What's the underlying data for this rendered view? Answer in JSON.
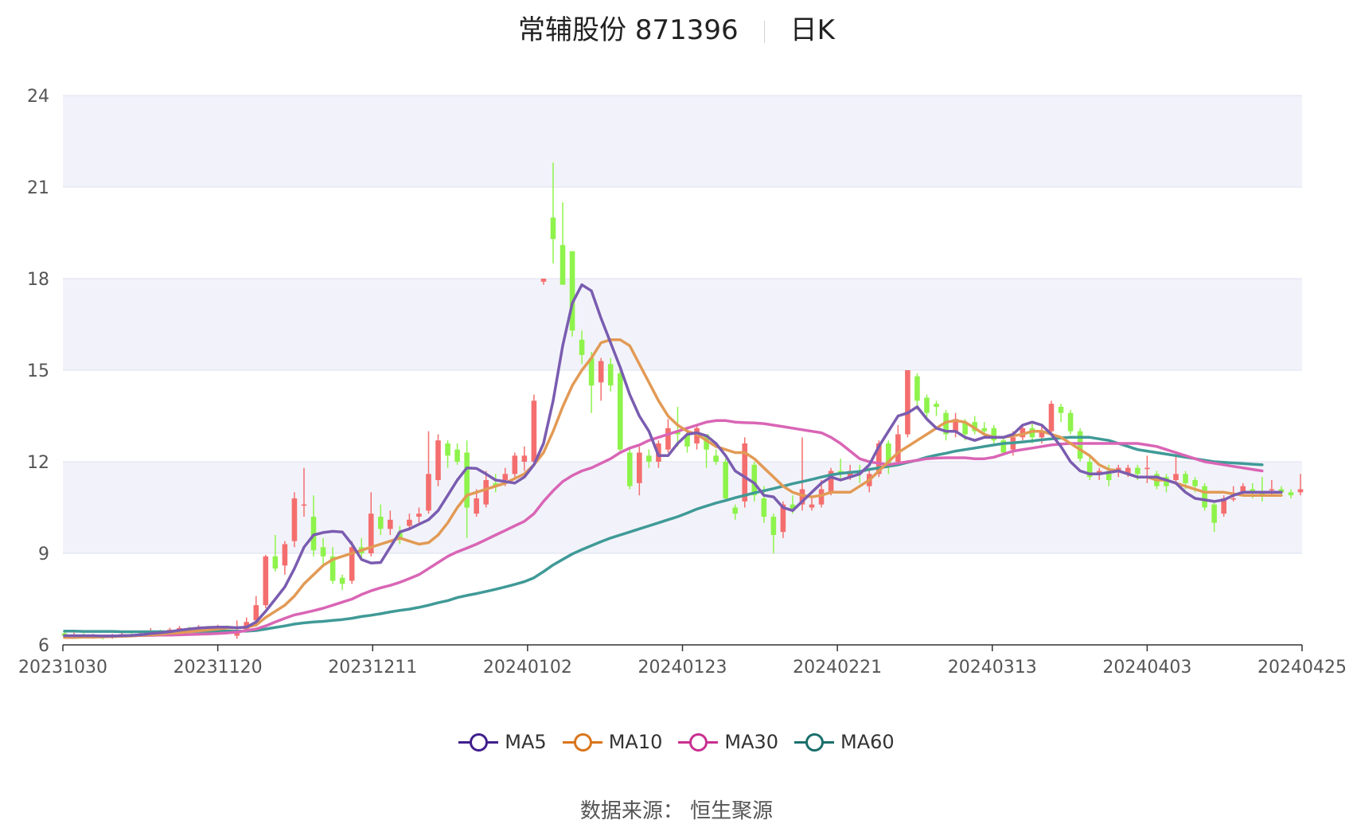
{
  "header": {
    "title": "常辅股份 871396",
    "period": "日K"
  },
  "legend": [
    {
      "label": "MA5",
      "color": "#3f1e8c"
    },
    {
      "label": "MA10",
      "color": "#d9761a"
    },
    {
      "label": "MA30",
      "color": "#c92f8f"
    },
    {
      "label": "MA60",
      "color": "#1a6f6b"
    }
  ],
  "source": "数据来源： 恒生聚源",
  "colors": {
    "up": "#f46e6e",
    "down": "#8ef34b",
    "grid": "#dcdff0",
    "band": "#f2f3fa",
    "ma5": "#7a5cb0",
    "ma10": "#e29a55",
    "ma30": "#d965b5",
    "ma60": "#3f9a97"
  },
  "chart_data": {
    "type": "candlestick",
    "ylim": [
      6,
      24
    ],
    "yticks": [
      6,
      9,
      12,
      15,
      18,
      21,
      24
    ],
    "xticks": [
      "20231030",
      "20231120",
      "20231211",
      "20240102",
      "20240123",
      "20240221",
      "20240313",
      "20240403",
      "20240425"
    ],
    "grid": true,
    "legend_position": "bottom",
    "candles": [
      [
        6.38,
        6.3,
        6.45,
        6.2
      ],
      [
        6.3,
        6.32,
        6.4,
        6.25
      ],
      [
        6.32,
        6.28,
        6.38,
        6.22
      ],
      [
        6.28,
        6.3,
        6.36,
        6.2
      ],
      [
        6.3,
        6.25,
        6.34,
        6.18
      ],
      [
        6.25,
        6.3,
        6.36,
        6.2
      ],
      [
        6.3,
        6.35,
        6.42,
        6.26
      ],
      [
        6.35,
        6.32,
        6.4,
        6.28
      ],
      [
        6.32,
        6.38,
        6.45,
        6.3
      ],
      [
        6.38,
        6.45,
        6.55,
        6.34
      ],
      [
        6.45,
        6.42,
        6.5,
        6.38
      ],
      [
        6.42,
        6.5,
        6.56,
        6.4
      ],
      [
        6.5,
        6.55,
        6.62,
        6.46
      ],
      [
        6.55,
        6.5,
        6.6,
        6.45
      ],
      [
        6.5,
        6.58,
        6.65,
        6.48
      ],
      [
        6.58,
        6.55,
        6.62,
        6.5
      ],
      [
        6.55,
        6.6,
        6.66,
        6.52
      ],
      [
        6.6,
        6.58,
        6.64,
        6.54
      ],
      [
        6.3,
        6.4,
        6.8,
        6.2
      ],
      [
        6.5,
        6.75,
        6.9,
        6.4
      ],
      [
        6.8,
        7.3,
        7.6,
        6.7
      ],
      [
        7.3,
        8.9,
        8.95,
        7.2
      ],
      [
        8.9,
        8.5,
        9.6,
        8.4
      ],
      [
        8.6,
        9.3,
        9.4,
        8.3
      ],
      [
        9.4,
        10.8,
        11.0,
        9.2
      ],
      [
        10.6,
        10.6,
        11.8,
        10.2
      ],
      [
        10.2,
        9.1,
        10.9,
        8.9
      ],
      [
        9.2,
        8.9,
        9.5,
        8.6
      ],
      [
        8.9,
        8.1,
        9.2,
        8.0
      ],
      [
        8.2,
        8.0,
        8.3,
        7.8
      ],
      [
        8.1,
        9.2,
        9.4,
        8.0
      ],
      [
        9.2,
        9.0,
        9.5,
        8.8
      ],
      [
        9.0,
        10.3,
        11.0,
        8.9
      ],
      [
        10.2,
        9.8,
        10.6,
        9.6
      ],
      [
        9.8,
        10.1,
        10.4,
        9.6
      ],
      [
        9.7,
        9.5,
        9.9,
        9.3
      ],
      [
        9.9,
        10.1,
        10.3,
        9.8
      ],
      [
        10.2,
        10.3,
        10.5,
        10.0
      ],
      [
        10.4,
        11.6,
        13.0,
        10.3
      ],
      [
        11.4,
        12.7,
        12.9,
        11.2
      ],
      [
        12.6,
        12.2,
        12.7,
        11.8
      ],
      [
        12.4,
        12.0,
        12.6,
        11.9
      ],
      [
        12.3,
        10.5,
        12.7,
        9.5
      ],
      [
        10.3,
        10.8,
        11.1,
        10.2
      ],
      [
        10.6,
        11.4,
        11.7,
        10.5
      ],
      [
        11.3,
        11.2,
        11.6,
        11.0
      ],
      [
        11.4,
        11.6,
        11.8,
        11.2
      ],
      [
        11.6,
        12.2,
        12.3,
        11.5
      ],
      [
        12.0,
        12.2,
        12.5,
        11.7
      ],
      [
        12.0,
        14.0,
        14.2,
        11.9
      ],
      [
        17.9,
        18.0,
        18.0,
        17.8
      ],
      [
        20.0,
        19.3,
        21.8,
        18.5
      ],
      [
        19.1,
        17.8,
        20.5,
        17.8
      ],
      [
        18.9,
        16.3,
        18.9,
        16.1
      ],
      [
        16.0,
        15.5,
        16.3,
        15.2
      ],
      [
        15.4,
        14.5,
        15.6,
        13.6
      ],
      [
        14.6,
        15.3,
        15.4,
        14.0
      ],
      [
        15.2,
        14.5,
        15.4,
        14.3
      ],
      [
        14.9,
        12.4,
        15.0,
        12.3
      ],
      [
        12.3,
        11.2,
        12.5,
        11.1
      ],
      [
        11.3,
        12.3,
        12.5,
        10.9
      ],
      [
        12.2,
        12.0,
        12.4,
        11.8
      ],
      [
        12.0,
        12.6,
        12.7,
        11.8
      ],
      [
        12.4,
        13.1,
        13.4,
        12.3
      ],
      [
        13.0,
        12.9,
        13.8,
        12.5
      ],
      [
        12.9,
        12.5,
        13.1,
        12.3
      ],
      [
        12.6,
        13.1,
        13.2,
        12.4
      ],
      [
        12.9,
        12.4,
        12.9,
        11.8
      ],
      [
        12.2,
        12.0,
        12.4,
        11.9
      ],
      [
        12.0,
        10.8,
        12.1,
        10.7
      ],
      [
        10.5,
        10.3,
        10.6,
        10.1
      ],
      [
        10.7,
        12.6,
        12.8,
        10.5
      ],
      [
        11.9,
        10.9,
        12.0,
        10.7
      ],
      [
        10.8,
        10.2,
        11.2,
        10.0
      ],
      [
        10.2,
        9.6,
        10.3,
        9.0
      ],
      [
        9.7,
        10.6,
        10.7,
        9.5
      ],
      [
        10.6,
        10.4,
        10.9,
        10.3
      ],
      [
        10.6,
        11.1,
        12.8,
        10.4
      ],
      [
        10.5,
        10.6,
        10.8,
        10.4
      ],
      [
        10.6,
        11.1,
        11.4,
        10.5
      ],
      [
        11.0,
        11.7,
        11.8,
        10.9
      ],
      [
        11.7,
        11.6,
        12.1,
        11.4
      ],
      [
        11.5,
        11.7,
        11.9,
        11.4
      ],
      [
        11.7,
        11.6,
        11.9,
        11.3
      ],
      [
        11.2,
        11.6,
        11.8,
        11.0
      ],
      [
        11.6,
        12.6,
        12.7,
        11.5
      ],
      [
        12.6,
        11.9,
        12.7,
        11.6
      ],
      [
        12.0,
        12.9,
        13.2,
        11.9
      ],
      [
        12.9,
        15.0,
        15.0,
        12.8
      ],
      [
        14.8,
        14.0,
        14.9,
        13.7
      ],
      [
        14.1,
        13.6,
        14.2,
        13.4
      ],
      [
        13.9,
        13.8,
        14.0,
        13.5
      ],
      [
        13.6,
        12.9,
        13.7,
        12.7
      ],
      [
        13.0,
        13.4,
        13.6,
        12.8
      ],
      [
        13.3,
        12.9,
        13.4,
        12.7
      ],
      [
        13.3,
        13.0,
        13.5,
        12.9
      ],
      [
        13.1,
        13.0,
        13.3,
        12.8
      ],
      [
        13.1,
        12.7,
        13.2,
        12.6
      ],
      [
        12.7,
        12.3,
        12.8,
        12.2
      ],
      [
        12.4,
        12.8,
        13.0,
        12.2
      ],
      [
        12.8,
        13.1,
        13.2,
        12.7
      ],
      [
        13.1,
        12.8,
        13.3,
        12.6
      ],
      [
        12.8,
        13.0,
        13.2,
        12.6
      ],
      [
        13.0,
        13.9,
        14.0,
        12.9
      ],
      [
        13.8,
        13.6,
        13.9,
        13.3
      ],
      [
        13.6,
        13.0,
        13.7,
        12.9
      ],
      [
        13.0,
        12.1,
        13.1,
        12.0
      ],
      [
        12.0,
        11.5,
        12.2,
        11.4
      ],
      [
        11.6,
        11.7,
        11.8,
        11.4
      ],
      [
        11.7,
        11.4,
        11.9,
        11.2
      ],
      [
        11.7,
        11.8,
        11.9,
        11.5
      ],
      [
        11.6,
        11.8,
        11.9,
        11.5
      ],
      [
        11.8,
        11.6,
        11.9,
        11.4
      ],
      [
        11.8,
        11.8,
        12.2,
        11.3
      ],
      [
        11.6,
        11.2,
        11.7,
        11.1
      ],
      [
        11.5,
        11.2,
        11.6,
        11.0
      ],
      [
        11.4,
        11.6,
        12.2,
        11.3
      ],
      [
        11.6,
        11.3,
        11.7,
        11.1
      ],
      [
        11.4,
        11.2,
        11.5,
        11.0
      ],
      [
        11.2,
        10.5,
        11.3,
        10.4
      ],
      [
        10.6,
        10.0,
        10.7,
        9.7
      ],
      [
        10.3,
        10.8,
        10.9,
        10.2
      ],
      [
        10.8,
        10.8,
        11.2,
        10.7
      ],
      [
        11.0,
        11.2,
        11.3,
        10.9
      ],
      [
        11.1,
        11.0,
        11.3,
        10.8
      ],
      [
        11.0,
        10.9,
        11.5,
        10.7
      ],
      [
        11.1,
        11.1,
        11.4,
        10.9
      ],
      [
        11.1,
        11.0,
        11.2,
        10.9
      ],
      [
        11.0,
        10.9,
        11.1,
        10.8
      ],
      [
        11.0,
        11.1,
        11.6,
        10.9
      ]
    ],
    "ma5": [
      6.3,
      6.3,
      6.3,
      6.3,
      6.29,
      6.29,
      6.3,
      6.31,
      6.33,
      6.37,
      6.4,
      6.43,
      6.48,
      6.52,
      6.55,
      6.57,
      6.58,
      6.58,
      6.56,
      6.58,
      6.75,
      7.1,
      7.5,
      7.9,
      8.5,
      9.2,
      9.6,
      9.68,
      9.72,
      9.7,
      9.3,
      8.8,
      8.68,
      8.7,
      9.2,
      9.7,
      9.8,
      9.95,
      10.1,
      10.4,
      10.9,
      11.4,
      11.8,
      11.78,
      11.6,
      11.4,
      11.35,
      11.3,
      11.5,
      11.9,
      12.6,
      14.0,
      15.8,
      17.2,
      17.8,
      17.6,
      16.7,
      15.9,
      15.1,
      14.2,
      13.5,
      13.0,
      12.2,
      12.2,
      12.6,
      12.9,
      12.95,
      12.85,
      12.6,
      12.2,
      11.7,
      11.5,
      11.3,
      10.9,
      10.85,
      10.5,
      10.4,
      10.7,
      11.0,
      11.3,
      11.5,
      11.4,
      11.5,
      11.6,
      11.9,
      12.5,
      13.0,
      13.5,
      13.6,
      13.8,
      13.4,
      13.1,
      13.0,
      13.0,
      12.8,
      12.7,
      12.8,
      12.8,
      12.8,
      12.9,
      13.2,
      13.3,
      13.2,
      12.9,
      12.5,
      12.0,
      11.7,
      11.6,
      11.6,
      11.65,
      11.7,
      11.6,
      11.5,
      11.5,
      11.5,
      11.4,
      11.3,
      11.0,
      10.8,
      10.75,
      10.7,
      10.75,
      10.9,
      11.0,
      11.0,
      11.0,
      11.0,
      11.0
    ],
    "ma10": [
      6.24,
      6.24,
      6.25,
      6.25,
      6.26,
      6.27,
      6.28,
      6.29,
      6.31,
      6.33,
      6.35,
      6.38,
      6.4,
      6.43,
      6.46,
      6.49,
      6.52,
      6.55,
      6.56,
      6.57,
      6.65,
      6.9,
      7.1,
      7.3,
      7.6,
      8.0,
      8.3,
      8.6,
      8.8,
      8.9,
      9.0,
      9.1,
      9.2,
      9.3,
      9.4,
      9.5,
      9.4,
      9.3,
      9.35,
      9.6,
      10.0,
      10.5,
      10.9,
      11.0,
      11.1,
      11.2,
      11.3,
      11.45,
      11.6,
      11.9,
      12.3,
      13.0,
      13.8,
      14.5,
      15.0,
      15.4,
      15.9,
      16.0,
      16.0,
      15.8,
      15.2,
      14.6,
      14.0,
      13.5,
      13.2,
      13.0,
      12.9,
      12.7,
      12.5,
      12.4,
      12.3,
      12.3,
      12.1,
      11.8,
      11.5,
      11.2,
      11.0,
      10.9,
      10.85,
      10.9,
      11.0,
      11.0,
      11.0,
      11.2,
      11.4,
      11.7,
      12.0,
      12.3,
      12.5,
      12.7,
      12.9,
      13.1,
      13.3,
      13.35,
      13.3,
      13.1,
      12.9,
      12.8,
      12.8,
      12.85,
      12.9,
      13.0,
      13.0,
      12.9,
      12.8,
      12.6,
      12.4,
      12.2,
      11.9,
      11.75,
      11.7,
      11.6,
      11.5,
      11.5,
      11.4,
      11.4,
      11.3,
      11.2,
      11.1,
      11.0,
      11.0,
      11.0,
      10.95,
      10.9,
      10.9,
      10.9,
      10.9,
      10.9
    ],
    "ma30": [
      6.28,
      6.28,
      6.28,
      6.28,
      6.29,
      6.29,
      6.3,
      6.3,
      6.31,
      6.31,
      6.32,
      6.32,
      6.33,
      6.34,
      6.35,
      6.36,
      6.37,
      6.39,
      6.42,
      6.47,
      6.52,
      6.62,
      6.75,
      6.87,
      6.98,
      7.05,
      7.12,
      7.2,
      7.3,
      7.4,
      7.5,
      7.65,
      7.77,
      7.87,
      7.95,
      8.05,
      8.17,
      8.3,
      8.5,
      8.7,
      8.9,
      9.05,
      9.17,
      9.3,
      9.45,
      9.6,
      9.75,
      9.9,
      10.05,
      10.3,
      10.7,
      11.05,
      11.35,
      11.55,
      11.7,
      11.8,
      11.95,
      12.1,
      12.3,
      12.45,
      12.55,
      12.7,
      12.8,
      12.9,
      13.0,
      13.1,
      13.2,
      13.3,
      13.35,
      13.35,
      13.3,
      13.28,
      13.27,
      13.25,
      13.2,
      13.15,
      13.1,
      13.05,
      13.0,
      12.95,
      12.8,
      12.6,
      12.35,
      12.1,
      12.0,
      11.95,
      11.9,
      11.95,
      12.0,
      12.05,
      12.1,
      12.12,
      12.13,
      12.13,
      12.13,
      12.1,
      12.1,
      12.15,
      12.25,
      12.35,
      12.4,
      12.45,
      12.5,
      12.55,
      12.58,
      12.6,
      12.6,
      12.6,
      12.6,
      12.6,
      12.6,
      12.6,
      12.6,
      12.55,
      12.5,
      12.4,
      12.3,
      12.2,
      12.1,
      12.0,
      11.95,
      11.9,
      11.85,
      11.8,
      11.75,
      11.7
    ],
    "ma60": [
      6.45,
      6.45,
      6.44,
      6.44,
      6.44,
      6.44,
      6.43,
      6.43,
      6.43,
      6.43,
      6.43,
      6.43,
      6.43,
      6.44,
      6.44,
      6.44,
      6.45,
      6.45,
      6.45,
      6.45,
      6.47,
      6.52,
      6.57,
      6.62,
      6.68,
      6.72,
      6.75,
      6.77,
      6.8,
      6.83,
      6.87,
      6.93,
      6.97,
      7.02,
      7.08,
      7.13,
      7.17,
      7.23,
      7.3,
      7.38,
      7.45,
      7.55,
      7.62,
      7.68,
      7.75,
      7.82,
      7.9,
      7.98,
      8.07,
      8.2,
      8.4,
      8.62,
      8.8,
      8.98,
      9.12,
      9.25,
      9.38,
      9.5,
      9.6,
      9.7,
      9.8,
      9.9,
      10.0,
      10.1,
      10.2,
      10.32,
      10.45,
      10.55,
      10.65,
      10.73,
      10.82,
      10.9,
      10.98,
      11.05,
      11.12,
      11.2,
      11.28,
      11.35,
      11.42,
      11.5,
      11.57,
      11.62,
      11.65,
      11.68,
      11.75,
      11.8,
      11.85,
      11.9,
      11.98,
      12.05,
      12.15,
      12.22,
      12.28,
      12.35,
      12.4,
      12.45,
      12.5,
      12.55,
      12.6,
      12.62,
      12.65,
      12.68,
      12.72,
      12.75,
      12.78,
      12.8,
      12.8,
      12.8,
      12.75,
      12.7,
      12.6,
      12.5,
      12.4,
      12.35,
      12.3,
      12.25,
      12.2,
      12.15,
      12.1,
      12.05,
      12.0,
      11.98,
      11.96,
      11.94,
      11.92,
      11.9
    ]
  }
}
